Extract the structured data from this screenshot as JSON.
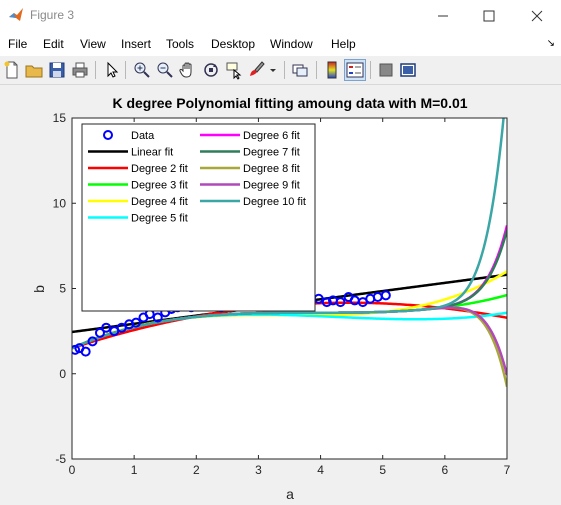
{
  "window": {
    "title": "Figure 3",
    "icon": "matlab-icon",
    "controls": [
      "minimize-icon",
      "maximize-icon",
      "close-icon"
    ]
  },
  "menu": {
    "items": [
      "File",
      "Edit",
      "View",
      "Insert",
      "Tools",
      "Desktop",
      "Window",
      "Help"
    ],
    "overflow_icon": "menu-expand-arrow-icon"
  },
  "toolbar": {
    "buttons": [
      {
        "name": "new-figure-icon"
      },
      {
        "name": "open-file-icon"
      },
      {
        "name": "save-icon"
      },
      {
        "name": "print-icon"
      },
      {
        "name": "pointer-icon"
      },
      {
        "name": "zoom-in-icon"
      },
      {
        "name": "zoom-out-icon"
      },
      {
        "name": "pan-hand-icon"
      },
      {
        "name": "rotate-3d-icon"
      },
      {
        "name": "data-cursor-icon"
      },
      {
        "name": "brush-icon"
      },
      {
        "name": "link-plot-icon"
      },
      {
        "name": "insert-colorbar-icon"
      },
      {
        "name": "insert-legend-icon",
        "pressed": true
      },
      {
        "name": "hide-plot-tools-icon"
      },
      {
        "name": "show-plot-tools-icon"
      }
    ]
  },
  "chart_data": {
    "type": "line",
    "title": "K degree Polynomial fitting amoung data with M=0.01",
    "xlabel": "a",
    "ylabel": "b",
    "xlim": [
      0,
      7
    ],
    "ylim": [
      -5,
      15
    ],
    "xticks": [
      "0",
      "1",
      "2",
      "3",
      "4",
      "5",
      "6",
      "7"
    ],
    "yticks": [
      "-5",
      "0",
      "5",
      "10",
      "15"
    ],
    "grid": false,
    "legend_placement": "top-left",
    "legend_columns": 2,
    "data_points": {
      "name": "Data",
      "color": "#0000ff",
      "marker": "circle",
      "x": [
        0.05,
        0.12,
        0.22,
        0.33,
        0.45,
        0.55,
        0.68,
        0.8,
        0.92,
        1.03,
        1.15,
        1.25,
        1.38,
        1.5,
        1.6,
        1.7,
        1.82,
        1.92,
        2.05,
        2.15,
        2.27,
        2.4,
        2.5,
        2.62,
        2.75,
        2.88,
        3.0,
        3.12,
        3.25,
        3.38,
        3.5,
        3.62,
        3.75,
        3.85,
        3.97,
        4.1,
        4.2,
        4.32,
        4.45,
        4.55,
        4.68,
        4.8,
        4.92,
        5.05
      ],
      "y": [
        1.4,
        1.5,
        1.3,
        1.9,
        2.4,
        2.7,
        2.5,
        2.7,
        2.9,
        3.0,
        3.3,
        3.5,
        3.3,
        3.6,
        3.8,
        3.9,
        4.0,
        3.9,
        4.1,
        4.0,
        4.1,
        3.9,
        4.2,
        4.1,
        4.2,
        4.3,
        4.6,
        4.2,
        4.4,
        4.3,
        4.0,
        4.4,
        4.2,
        4.3,
        4.4,
        4.2,
        4.3,
        4.2,
        4.5,
        4.3,
        4.2,
        4.4,
        4.5,
        4.6
      ]
    },
    "series": [
      {
        "name": "Linear fit",
        "color": "#000000",
        "coeffs": [
          2.45,
          0.48
        ]
      },
      {
        "name": "Degree 2 fit",
        "color": "#ff0000",
        "coeffs": [
          1.5,
          1.2,
          -0.135
        ]
      },
      {
        "name": "Degree 3 fit",
        "color": "#00ff00",
        "coeffs": [
          1.5,
          1.6,
          -0.41,
          0.035
        ]
      },
      {
        "name": "Degree 4 fit",
        "color": "#ffff00",
        "coeffs": [
          1.5,
          1.7,
          -0.48,
          0.04,
          0.001
        ]
      },
      {
        "name": "Degree 5 fit",
        "color": "#00ffff",
        "coeffs": [
          1.5,
          1.62,
          -0.42,
          0.033,
          0.0
        ]
      },
      {
        "name": "Degree 6 fit",
        "color": "#ff00ff",
        "coeffs": [
          1.5,
          1.6,
          -0.41,
          0.035,
          0,
          0,
          0.00012
        ]
      },
      {
        "name": "Degree 7 fit",
        "color": "#2e7d5b",
        "coeffs": [
          1.5,
          1.6,
          -0.41,
          0.035,
          0,
          0,
          0.000112
        ]
      },
      {
        "name": "Degree 8 fit",
        "color": "#a8a83a",
        "coeffs": [
          1.5,
          1.6,
          -0.41,
          0.035,
          0,
          0,
          -0.000158
        ]
      },
      {
        "name": "Degree 9 fit",
        "color": "#b04ab8",
        "coeffs": [
          1.5,
          1.6,
          -0.41,
          0.035,
          0,
          0,
          -0.000138
        ]
      },
      {
        "name": "Degree 10 fit",
        "color": "#3aa6a6",
        "coeffs": [
          1.5,
          1.6,
          -0.41,
          0.035,
          0,
          0,
          0.00037
        ]
      }
    ]
  }
}
